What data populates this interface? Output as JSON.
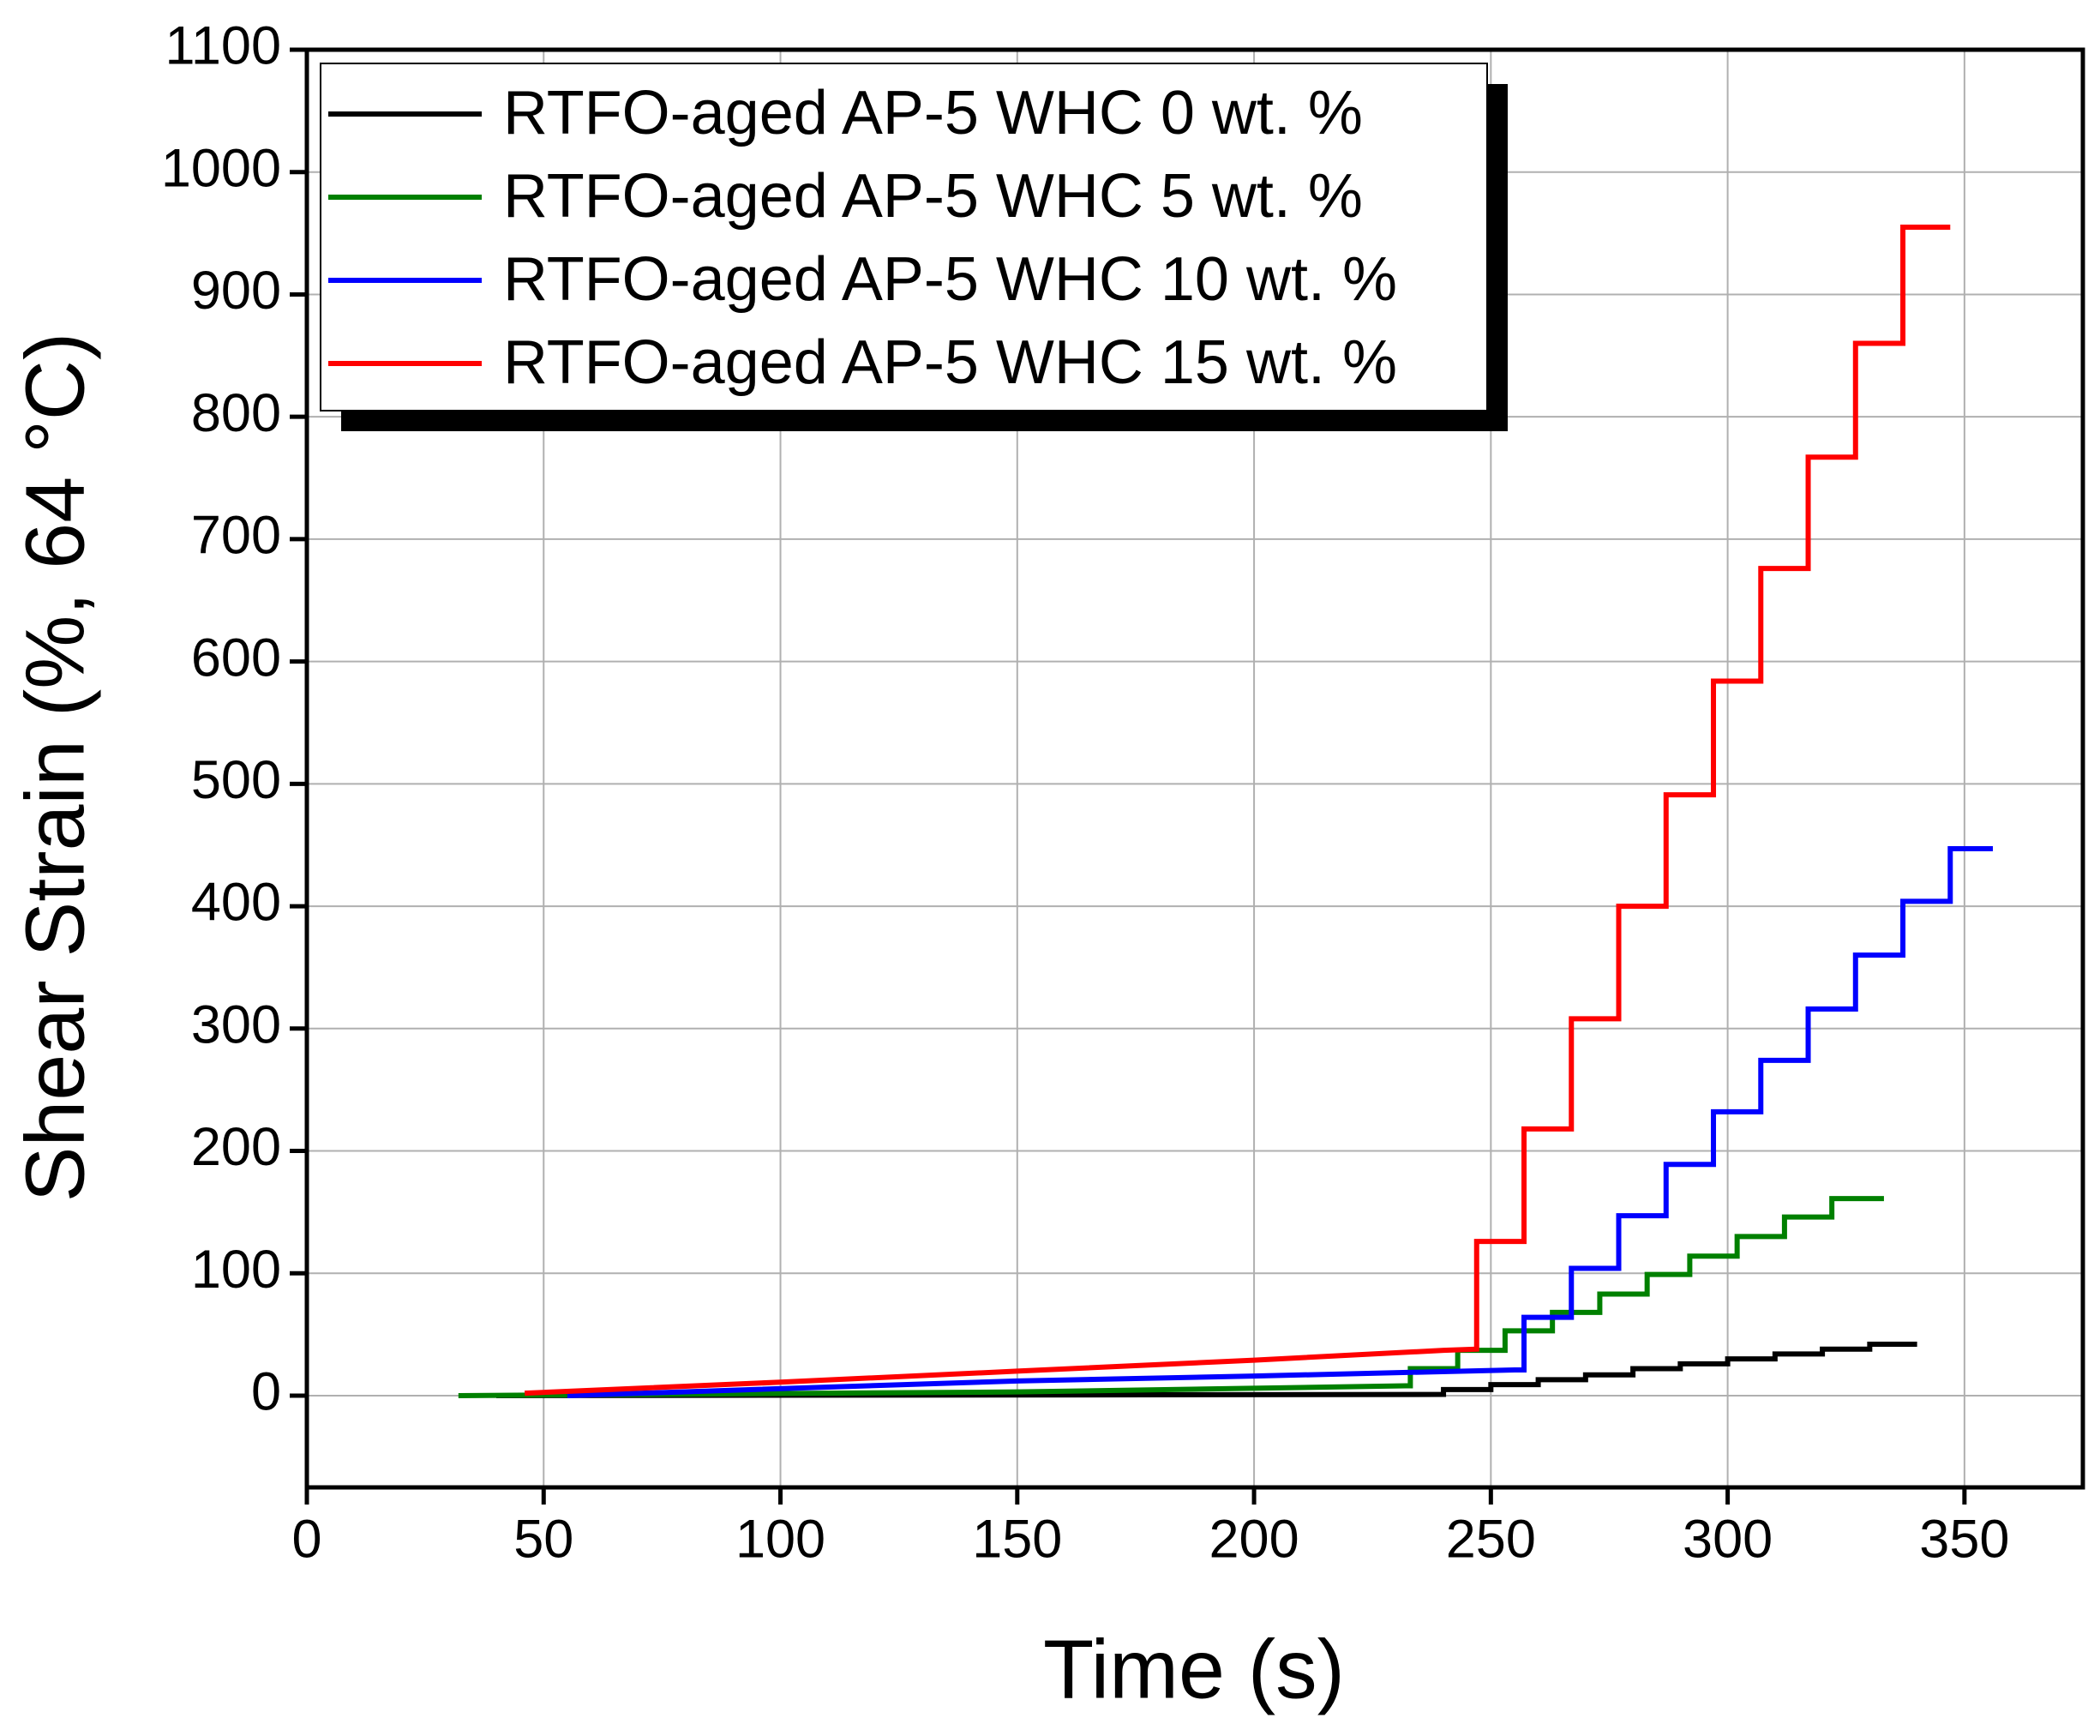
{
  "chart_data": {
    "type": "line",
    "x_label": "Time (s)",
    "y_label": "Shear Strain (%, 64 °C)",
    "xlim": [
      0,
      375
    ],
    "ylim": [
      -75,
      1100
    ],
    "xticks": [
      0,
      50,
      100,
      150,
      200,
      250,
      300,
      350
    ],
    "yticks": [
      0,
      100,
      200,
      300,
      400,
      500,
      600,
      700,
      800,
      900,
      1000,
      1100
    ],
    "grid": true,
    "legend": "upper left",
    "series": [
      {
        "name": "RTFO-aged AP-5 WHC 0 wt. %",
        "color": "#000000",
        "x": [
          40,
          240,
          240,
          250,
          250,
          260,
          260,
          270,
          270,
          280,
          280,
          290,
          290,
          300,
          300,
          310,
          310,
          320,
          320,
          330,
          330,
          340
        ],
        "values": [
          0,
          1,
          5,
          5,
          9,
          9,
          13,
          13,
          17,
          17,
          22,
          22,
          26,
          26,
          30,
          30,
          34,
          34,
          38,
          38,
          42,
          42
        ]
      },
      {
        "name": "RTFO-aged AP-5 WHC 5 wt. %",
        "color": "#008000",
        "x": [
          32,
          150,
          232,
          233,
          233,
          243,
          243,
          253,
          253,
          263,
          263,
          273,
          273,
          283,
          283,
          292,
          292,
          302,
          302,
          312,
          312,
          322,
          322,
          333
        ],
        "values": [
          0,
          3,
          8,
          8,
          22,
          22,
          37,
          37,
          53,
          53,
          68,
          68,
          83,
          83,
          99,
          99,
          114,
          114,
          130,
          130,
          146,
          146,
          161,
          161
        ]
      },
      {
        "name": "RTFO-aged AP-5 WHC 10 wt. %",
        "color": "#0000ff",
        "x": [
          55,
          150,
          200,
          255,
          257,
          257,
          267,
          267,
          277,
          277,
          287,
          287,
          297,
          297,
          307,
          307,
          317,
          317,
          327,
          327,
          337,
          337,
          347,
          347,
          356
        ],
        "values": [
          0,
          12,
          16,
          21,
          21,
          64,
          64,
          104,
          104,
          147,
          147,
          189,
          189,
          232,
          232,
          274,
          274,
          316,
          316,
          360,
          360,
          404,
          404,
          447,
          447
        ]
      },
      {
        "name": "RTFO-aged AP-5 WHC 15 wt. %",
        "color": "#ff0000",
        "x": [
          46,
          100,
          150,
          200,
          240,
          247,
          247,
          257,
          257,
          267,
          267,
          277,
          277,
          287,
          287,
          297,
          297,
          307,
          307,
          317,
          317,
          327,
          327,
          337,
          337,
          347
        ],
        "values": [
          2,
          11,
          20,
          29,
          37,
          38,
          126,
          126,
          218,
          218,
          308,
          308,
          400,
          400,
          491,
          491,
          584,
          584,
          676,
          676,
          767,
          767,
          860,
          860,
          955,
          955
        ]
      }
    ]
  }
}
